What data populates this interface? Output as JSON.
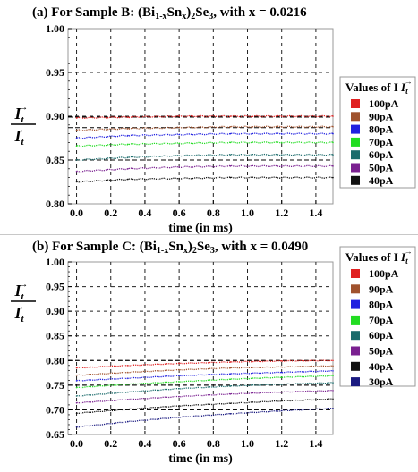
{
  "chart_data": [
    {
      "type": "line",
      "title_prefix": "(a) For Sample B: (Bi",
      "title_sub1": "1-x",
      "title_mid": "Sn",
      "title_sub2": "x",
      "title_suffix": ")",
      "title_sub3": "2",
      "title_end": "Se",
      "title_sub4": "3",
      "title_tail": ", with x = 0.0216",
      "xlabel": "time (in ms)",
      "ylabel_num": "I",
      "ylabel_num_sub": "t",
      "ylabel_num_sup": "→",
      "ylabel_den": "I",
      "ylabel_den_sub": "t",
      "ylabel_den_sup": "←",
      "xlim": [
        -0.05,
        1.5
      ],
      "ylim": [
        0.8,
        1.0
      ],
      "xticks": [
        "0.0",
        "0.2",
        "0.4",
        "0.6",
        "0.8",
        "1.0",
        "1.2",
        "1.4"
      ],
      "yticks": [
        "0.80",
        "0.85",
        "0.90",
        "0.95",
        "1.00"
      ],
      "grid": true,
      "legend_title": "Values of I",
      "legend_title_sub": "t",
      "legend_title_sup": "→",
      "legend_position": "right",
      "series": [
        {
          "name": "100pA",
          "color": "#e02020",
          "x": [
            0.0,
            0.3,
            0.6,
            0.9,
            1.2,
            1.5
          ],
          "y": [
            0.898,
            0.899,
            0.9,
            0.9,
            0.9,
            0.9
          ]
        },
        {
          "name": "90pA",
          "color": "#a0522d",
          "x": [
            0.0,
            0.3,
            0.6,
            0.9,
            1.2,
            1.5
          ],
          "y": [
            0.884,
            0.886,
            0.887,
            0.888,
            0.888,
            0.888
          ]
        },
        {
          "name": "80pA",
          "color": "#2020e0",
          "x": [
            0.0,
            0.3,
            0.6,
            0.9,
            1.2,
            1.5
          ],
          "y": [
            0.875,
            0.878,
            0.879,
            0.88,
            0.88,
            0.88
          ]
        },
        {
          "name": "70pA",
          "color": "#22dd22",
          "x": [
            0.0,
            0.3,
            0.6,
            0.9,
            1.2,
            1.5
          ],
          "y": [
            0.866,
            0.868,
            0.869,
            0.87,
            0.87,
            0.87
          ]
        },
        {
          "name": "60pA",
          "color": "#1a6b6b",
          "x": [
            0.0,
            0.3,
            0.6,
            0.9,
            1.2,
            1.5
          ],
          "y": [
            0.85,
            0.853,
            0.855,
            0.856,
            0.856,
            0.856
          ]
        },
        {
          "name": "50pA",
          "color": "#7a2090",
          "x": [
            0.0,
            0.3,
            0.6,
            0.9,
            1.2,
            1.5
          ],
          "y": [
            0.837,
            0.84,
            0.842,
            0.843,
            0.843,
            0.843
          ]
        },
        {
          "name": "40pA",
          "color": "#111111",
          "x": [
            0.0,
            0.3,
            0.6,
            0.9,
            1.2,
            1.5
          ],
          "y": [
            0.825,
            0.828,
            0.829,
            0.83,
            0.83,
            0.83
          ]
        }
      ],
      "dashed_refs": [
        0.899,
        0.887,
        0.85
      ]
    },
    {
      "type": "line",
      "title_prefix": "(b) For Sample C: (Bi",
      "title_sub1": "1-x",
      "title_mid": "Sn",
      "title_sub2": "x",
      "title_suffix": ")",
      "title_sub3": "2",
      "title_end": "Se",
      "title_sub4": "3",
      "title_tail": ", with x = 0.0490",
      "xlabel": "time (in ms)",
      "ylabel_num": "I",
      "ylabel_num_sub": "t",
      "ylabel_num_sup": "→",
      "ylabel_den": "I",
      "ylabel_den_sub": "t",
      "ylabel_den_sup": "←",
      "xlim": [
        -0.05,
        1.5
      ],
      "ylim": [
        0.65,
        1.0
      ],
      "xticks": [
        "0.0",
        "0.2",
        "0.4",
        "0.6",
        "0.8",
        "1.0",
        "1.2",
        "1.4"
      ],
      "yticks": [
        "0.65",
        "0.70",
        "0.75",
        "0.80",
        "0.85",
        "0.90",
        "0.95",
        "1.00"
      ],
      "grid": true,
      "legend_title": "Values of I",
      "legend_title_sub": "t",
      "legend_title_sup": "→",
      "legend_position": "right",
      "series": [
        {
          "name": "100pA",
          "color": "#e02020",
          "x": [
            0.0,
            0.3,
            0.6,
            0.9,
            1.2,
            1.5
          ],
          "y": [
            0.785,
            0.79,
            0.794,
            0.797,
            0.799,
            0.8
          ]
        },
        {
          "name": "90pA",
          "color": "#a0522d",
          "x": [
            0.0,
            0.3,
            0.6,
            0.9,
            1.2,
            1.5
          ],
          "y": [
            0.77,
            0.776,
            0.781,
            0.785,
            0.787,
            0.789
          ]
        },
        {
          "name": "80pA",
          "color": "#2020e0",
          "x": [
            0.0,
            0.3,
            0.6,
            0.9,
            1.2,
            1.5
          ],
          "y": [
            0.759,
            0.764,
            0.769,
            0.773,
            0.776,
            0.779
          ]
        },
        {
          "name": "70pA",
          "color": "#22dd22",
          "x": [
            0.0,
            0.3,
            0.6,
            0.9,
            1.2,
            1.5
          ],
          "y": [
            0.745,
            0.752,
            0.757,
            0.762,
            0.766,
            0.769
          ]
        },
        {
          "name": "60pA",
          "color": "#1a6b6b",
          "x": [
            0.0,
            0.3,
            0.6,
            0.9,
            1.2,
            1.5
          ],
          "y": [
            0.728,
            0.736,
            0.743,
            0.748,
            0.752,
            0.755
          ]
        },
        {
          "name": "50pA",
          "color": "#7a2090",
          "x": [
            0.0,
            0.3,
            0.6,
            0.9,
            1.2,
            1.5
          ],
          "y": [
            0.714,
            0.721,
            0.727,
            0.732,
            0.736,
            0.739
          ]
        },
        {
          "name": "40pA",
          "color": "#111111",
          "x": [
            0.0,
            0.3,
            0.6,
            0.9,
            1.2,
            1.5
          ],
          "y": [
            0.693,
            0.701,
            0.708,
            0.713,
            0.718,
            0.722
          ]
        },
        {
          "name": "30pA",
          "color": "#1a1a80",
          "x": [
            0.0,
            0.3,
            0.6,
            0.9,
            1.2,
            1.5
          ],
          "y": [
            0.665,
            0.676,
            0.685,
            0.692,
            0.698,
            0.703
          ]
        }
      ],
      "dashed_refs": [
        0.8,
        0.75,
        0.7
      ]
    }
  ]
}
